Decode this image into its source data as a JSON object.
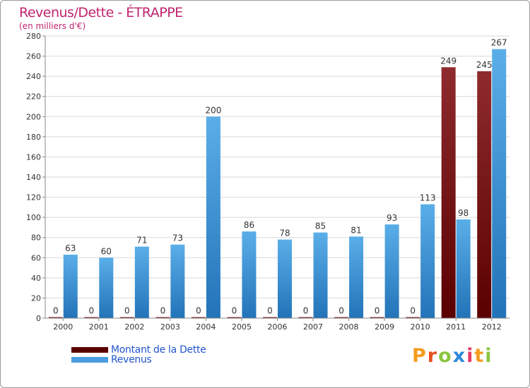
{
  "colors": {
    "dette_dark": "#5a0000",
    "dette_light": "#8e2b2e",
    "revenus_dark": "#2273b8",
    "revenus_light": "#5aaee8",
    "title": "#c0246e",
    "legend_text": "#2255cc",
    "grid": "#d8d8d8"
  },
  "chart_data": {
    "type": "bar",
    "title": "Revenus/Dette - ÉTRAPPE",
    "subtitle": "(en milliers d'€)",
    "categories": [
      "2000",
      "2001",
      "2002",
      "2003",
      "2004",
      "2005",
      "2006",
      "2007",
      "2008",
      "2009",
      "2010",
      "2011",
      "2012"
    ],
    "series": [
      {
        "name": "Montant de la Dette",
        "values": [
          0,
          0,
          0,
          0,
          0,
          0,
          0,
          0,
          0,
          0,
          0,
          249,
          245
        ]
      },
      {
        "name": "Revenus",
        "values": [
          63,
          60,
          71,
          73,
          200,
          86,
          78,
          85,
          81,
          93,
          113,
          98,
          267
        ]
      }
    ],
    "ylim": [
      0,
      280
    ],
    "yticks": [
      0,
      20,
      40,
      60,
      80,
      100,
      120,
      140,
      160,
      180,
      200,
      220,
      240,
      260,
      280
    ],
    "grid": true,
    "legend_position": "bottom-left"
  },
  "logo": {
    "letters": [
      {
        "char": "P",
        "color": "#f39c1e"
      },
      {
        "char": "r",
        "color": "#e8501f"
      },
      {
        "char": "o",
        "color": "#8bc53f"
      },
      {
        "char": "x",
        "color": "#2a88d8"
      },
      {
        "char": "i",
        "color": "#e83a66"
      },
      {
        "char": "t",
        "color": "#f39c1e"
      },
      {
        "char": "i",
        "color": "#8bc53f"
      }
    ]
  }
}
